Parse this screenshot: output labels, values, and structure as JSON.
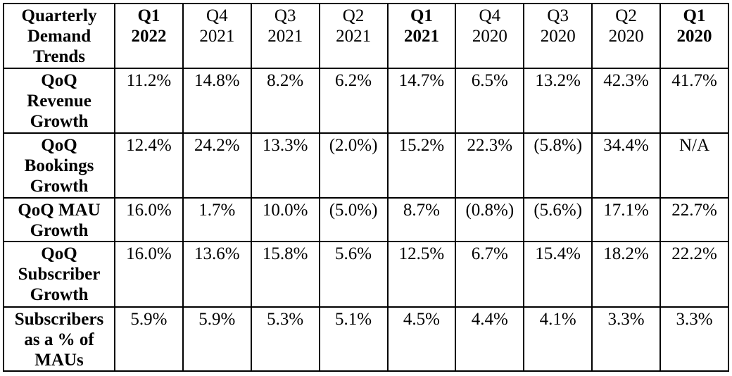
{
  "colors": {
    "background": "#ffffff",
    "border": "#000000",
    "text": "#000000"
  },
  "chart_data": {
    "type": "table",
    "title": "Quarterly Demand Trends",
    "title_lines": [
      "Quarterly",
      "Demand",
      "Trends"
    ],
    "value_format": "percent, parentheses denote negative values",
    "columns": [
      {
        "quarter": "Q1",
        "year": "2022",
        "bold": true
      },
      {
        "quarter": "Q4",
        "year": "2021",
        "bold": false
      },
      {
        "quarter": "Q3",
        "year": "2021",
        "bold": false
      },
      {
        "quarter": "Q2",
        "year": "2021",
        "bold": false
      },
      {
        "quarter": "Q1",
        "year": "2021",
        "bold": true
      },
      {
        "quarter": "Q4",
        "year": "2020",
        "bold": false
      },
      {
        "quarter": "Q3",
        "year": "2020",
        "bold": false
      },
      {
        "quarter": "Q2",
        "year": "2020",
        "bold": false
      },
      {
        "quarter": "Q1",
        "year": "2020",
        "bold": true
      }
    ],
    "rows": [
      {
        "label": "QoQ Revenue Growth",
        "label_lines": [
          "QoQ",
          "Revenue",
          "Growth"
        ],
        "values": [
          "11.2%",
          "14.8%",
          "8.2%",
          "6.2%",
          "14.7%",
          "6.5%",
          "13.2%",
          "42.3%",
          "41.7%"
        ]
      },
      {
        "label": "QoQ Bookings Growth",
        "label_lines": [
          "QoQ",
          "Bookings",
          "Growth"
        ],
        "values": [
          "12.4%",
          "24.2%",
          "13.3%",
          "(2.0%)",
          "15.2%",
          "22.3%",
          "(5.8%)",
          "34.4%",
          "N/A"
        ]
      },
      {
        "label": "QoQ MAU Growth",
        "label_lines": [
          "QoQ MAU",
          "Growth"
        ],
        "values": [
          "16.0%",
          "1.7%",
          "10.0%",
          "(5.0%)",
          "8.7%",
          "(0.8%)",
          "(5.6%)",
          "17.1%",
          "22.7%"
        ]
      },
      {
        "label": "QoQ Subscriber Growth",
        "label_lines": [
          "QoQ",
          "Subscriber",
          "Growth"
        ],
        "values": [
          "16.0%",
          "13.6%",
          "15.8%",
          "5.6%",
          "12.5%",
          "6.7%",
          "15.4%",
          "18.2%",
          "22.2%"
        ]
      },
      {
        "label": "Subscribers as a % of MAUs",
        "label_lines": [
          "Subscribers",
          "as a % of",
          "MAUs"
        ],
        "values": [
          "5.9%",
          "5.9%",
          "5.3%",
          "5.1%",
          "4.5%",
          "4.4%",
          "4.1%",
          "3.3%",
          "3.3%"
        ]
      }
    ]
  }
}
